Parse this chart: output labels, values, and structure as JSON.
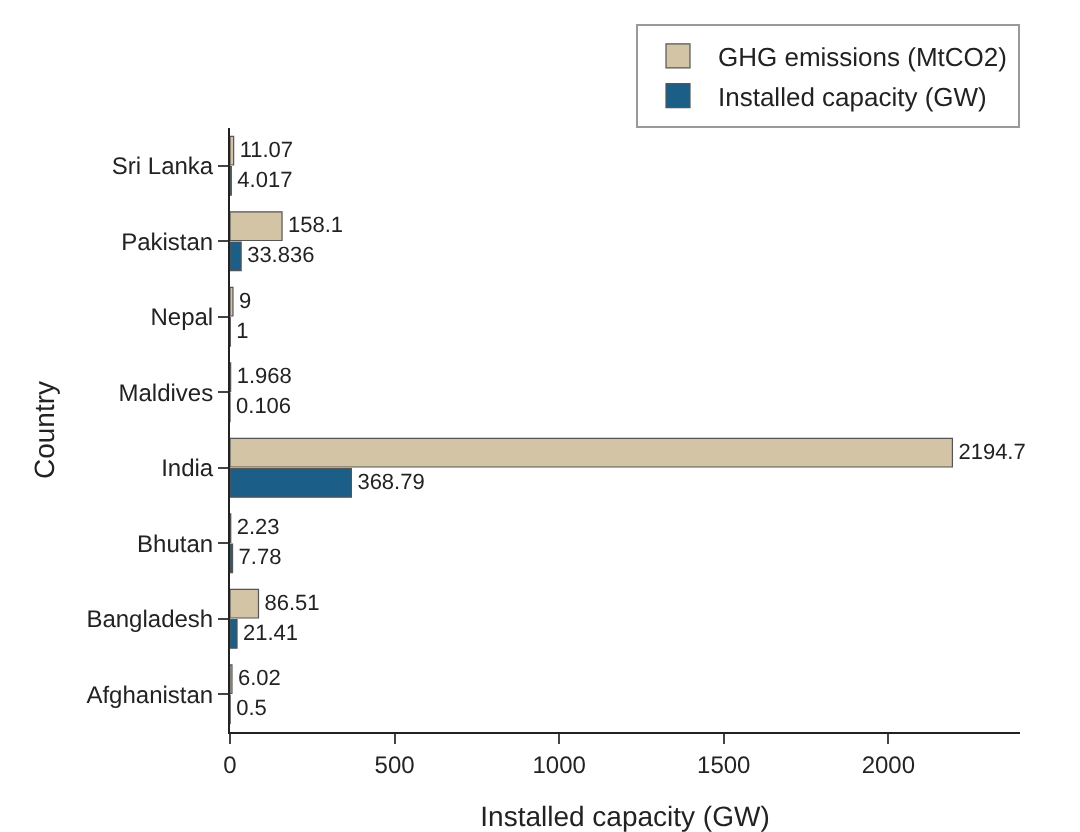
{
  "chart_data": {
    "type": "bar",
    "orientation": "horizontal",
    "xlabel": "Installed capacity (GW)",
    "ylabel": "Country",
    "categories": [
      "Sri Lanka",
      "Pakistan",
      "Nepal",
      "Maldives",
      "India",
      "Bhutan",
      "Bangladesh",
      "Afghanistan"
    ],
    "series": [
      {
        "name": "GHG emissions (MtCO2)",
        "color": "#d3c4a5",
        "values": [
          11.07,
          158.1,
          9,
          1.968,
          2194.7,
          2.23,
          86.51,
          6.02
        ]
      },
      {
        "name": "Installed capacity (GW)",
        "color": "#1b5e87",
        "values": [
          4.017,
          33.836,
          1,
          0.106,
          368.79,
          7.78,
          21.41,
          0.5
        ]
      }
    ],
    "xlim": [
      0,
      2400
    ],
    "xticks": [
      0,
      500,
      1000,
      1500,
      2000
    ],
    "data_labels": true,
    "grid": false,
    "legend": "top right"
  }
}
